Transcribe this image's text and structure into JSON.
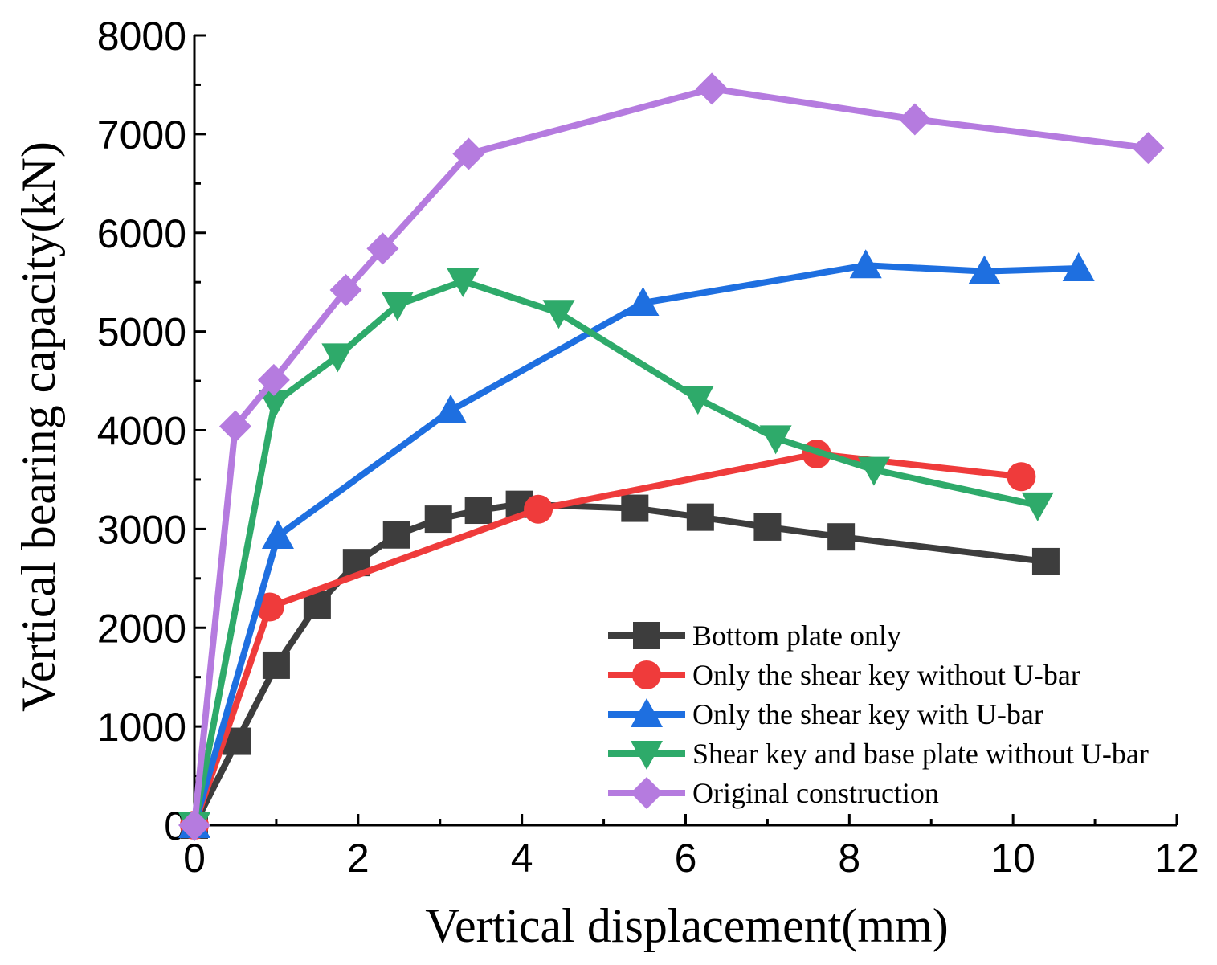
{
  "chart_data": {
    "type": "line",
    "title": "",
    "xlabel": "Vertical displacement(mm)",
    "ylabel": "Vertical bearing capacity(kN)",
    "xlim": [
      0,
      12
    ],
    "ylim": [
      0,
      8000
    ],
    "xticks": [
      0,
      2,
      4,
      6,
      8,
      10,
      12
    ],
    "yticks": [
      0,
      1000,
      2000,
      3000,
      4000,
      5000,
      6000,
      7000,
      8000
    ],
    "xtick_labels": [
      "0",
      "2",
      "4",
      "6",
      "8",
      "10",
      "12"
    ],
    "ytick_labels": [
      "0",
      "1000",
      "2000",
      "3000",
      "4000",
      "5000",
      "6000",
      "7000",
      "8000"
    ],
    "legend_position": "bottom-right",
    "grid": false,
    "series": [
      {
        "name": "Bottom plate only",
        "color": "#3d3d3d",
        "marker": "square",
        "x": [
          0,
          0.52,
          1.0,
          1.5,
          1.98,
          2.47,
          2.98,
          3.47,
          3.97,
          5.38,
          6.18,
          7.0,
          7.9,
          10.4
        ],
        "y": [
          0,
          850,
          1620,
          2230,
          2660,
          2940,
          3100,
          3190,
          3250,
          3210,
          3120,
          3020,
          2920,
          2670
        ]
      },
      {
        "name": "Only the shear key without U-bar",
        "color": "#ef3b3b",
        "marker": "circle",
        "x": [
          0,
          0.92,
          4.2,
          7.6,
          10.1
        ],
        "y": [
          0,
          2210,
          3200,
          3760,
          3530
        ]
      },
      {
        "name": "Only the shear key with U-bar",
        "color": "#1e6fe0",
        "marker": "triangle-up",
        "x": [
          0,
          1.02,
          3.13,
          5.48,
          8.2,
          9.65,
          10.8
        ],
        "y": [
          0,
          2930,
          4200,
          5290,
          5670,
          5610,
          5640
        ]
      },
      {
        "name": "Shear key and base plate without U-bar",
        "color": "#2eaa6a",
        "marker": "triangle-down",
        "x": [
          0,
          0.98,
          1.75,
          2.48,
          3.28,
          4.45,
          6.15,
          7.1,
          8.3,
          10.3
        ],
        "y": [
          0,
          4280,
          4750,
          5270,
          5510,
          5190,
          4320,
          3920,
          3600,
          3240
        ]
      },
      {
        "name": "Original construction",
        "color": "#b57bdf",
        "marker": "diamond",
        "x": [
          0,
          0.5,
          0.97,
          1.85,
          2.3,
          3.35,
          6.32,
          8.8,
          11.65
        ],
        "y": [
          0,
          4040,
          4510,
          5420,
          5840,
          6800,
          7460,
          7150,
          6860
        ]
      }
    ]
  }
}
